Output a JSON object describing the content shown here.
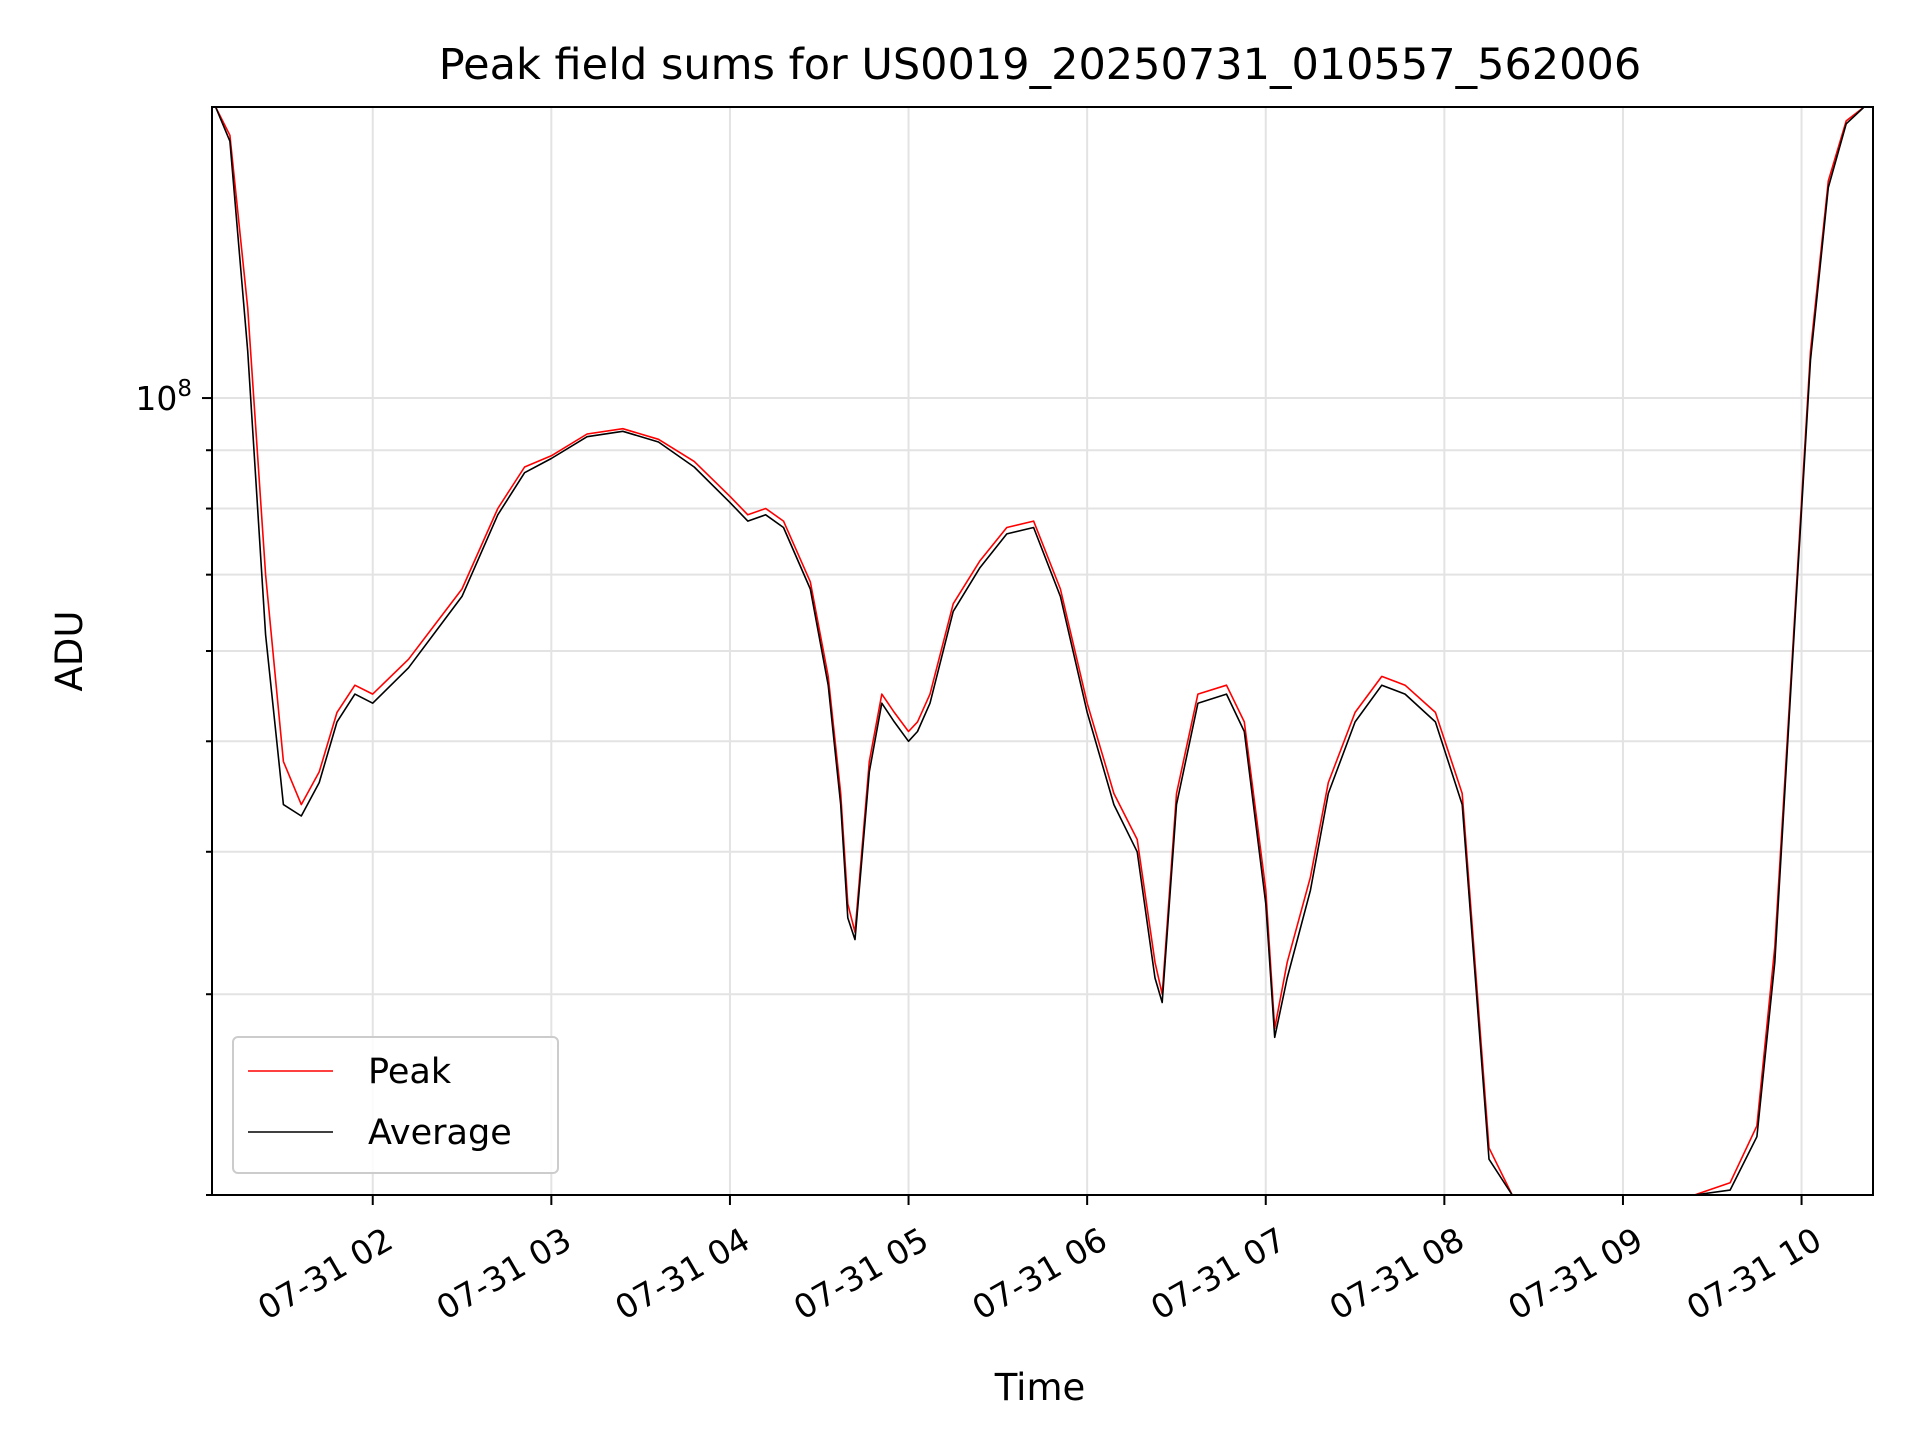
{
  "chart_data": {
    "type": "line",
    "title": "Peak field sums for US0019_20250731_010557_562006",
    "xlabel": "Time",
    "ylabel": "ADU",
    "y_scale": "log",
    "grid": true,
    "legend_position": "lower-left",
    "x_tick_labels": [
      "07-31 02",
      "07-31 03",
      "07-31 04",
      "07-31 05",
      "07-31 06",
      "07-31 07",
      "07-31 08",
      "07-31 09",
      "07-31 10"
    ],
    "x_tick_hours": [
      2,
      3,
      4,
      5,
      6,
      7,
      8,
      9,
      10
    ],
    "xlim_hours": [
      1.1,
      10.4
    ],
    "y_major_tick": {
      "base": 10,
      "exponent": 8
    },
    "ylim": [
      20000000,
      180000000
    ],
    "series": [
      {
        "name": "Peak",
        "color": "#ff0000",
        "x_hours": [
          1.12,
          1.2,
          1.3,
          1.4,
          1.5,
          1.6,
          1.7,
          1.8,
          1.9,
          2.0,
          2.2,
          2.5,
          2.7,
          2.85,
          3.0,
          3.2,
          3.4,
          3.6,
          3.8,
          4.0,
          4.1,
          4.2,
          4.3,
          4.45,
          4.55,
          4.62,
          4.66,
          4.7,
          4.78,
          4.85,
          4.92,
          5.0,
          5.05,
          5.12,
          5.25,
          5.4,
          5.55,
          5.7,
          5.85,
          6.0,
          6.15,
          6.28,
          6.38,
          6.42,
          6.5,
          6.62,
          6.78,
          6.88,
          7.0,
          7.05,
          7.12,
          7.25,
          7.35,
          7.5,
          7.65,
          7.78,
          7.95,
          8.1,
          8.25,
          8.38,
          8.6,
          8.8,
          9.0,
          9.2,
          9.4,
          9.6,
          9.75,
          9.85,
          9.95,
          10.05,
          10.15,
          10.25,
          10.35,
          10.4
        ],
        "y": [
          180000000,
          170000000,
          120000000,
          70000000,
          48000000,
          44000000,
          47000000,
          53000000,
          56000000,
          55000000,
          59000000,
          68000000,
          80000000,
          87000000,
          89000000,
          93000000,
          94000000,
          92000000,
          88000000,
          82000000,
          79000000,
          80000000,
          78000000,
          69000000,
          57000000,
          45000000,
          36000000,
          34000000,
          48000000,
          55000000,
          53000000,
          51000000,
          52000000,
          55000000,
          66000000,
          72000000,
          77000000,
          78000000,
          68000000,
          54000000,
          45000000,
          41000000,
          32000000,
          30000000,
          45000000,
          55000000,
          56000000,
          52000000,
          37000000,
          28000000,
          32000000,
          38000000,
          46000000,
          53000000,
          57000000,
          56000000,
          53000000,
          45000000,
          22000000,
          19400000,
          19500000,
          19500000,
          19700000,
          19700000,
          19800000,
          20500000,
          23000000,
          33000000,
          60000000,
          110000000,
          155000000,
          175000000,
          180000000,
          180000000
        ]
      },
      {
        "name": "Average",
        "color": "#000000",
        "x_hours": [
          1.12,
          1.2,
          1.3,
          1.4,
          1.5,
          1.6,
          1.7,
          1.8,
          1.9,
          2.0,
          2.2,
          2.5,
          2.7,
          2.85,
          3.0,
          3.2,
          3.4,
          3.6,
          3.8,
          4.0,
          4.1,
          4.2,
          4.3,
          4.45,
          4.55,
          4.62,
          4.66,
          4.7,
          4.78,
          4.85,
          4.92,
          5.0,
          5.05,
          5.12,
          5.25,
          5.4,
          5.55,
          5.7,
          5.85,
          6.0,
          6.15,
          6.28,
          6.38,
          6.42,
          6.5,
          6.62,
          6.78,
          6.88,
          7.0,
          7.05,
          7.12,
          7.25,
          7.35,
          7.5,
          7.65,
          7.78,
          7.95,
          8.1,
          8.25,
          8.38,
          8.6,
          8.8,
          9.0,
          9.2,
          9.4,
          9.6,
          9.75,
          9.85,
          9.95,
          10.05,
          10.15,
          10.25,
          10.35,
          10.4
        ],
        "y": [
          180000000,
          168000000,
          110000000,
          62000000,
          44000000,
          43000000,
          46000000,
          52000000,
          55000000,
          54000000,
          58000000,
          67000000,
          79000000,
          86000000,
          88500000,
          92500000,
          93500000,
          91500000,
          87000000,
          81000000,
          78000000,
          79000000,
          77000000,
          68000000,
          56000000,
          44000000,
          35000000,
          33500000,
          47000000,
          54000000,
          52000000,
          50000000,
          51000000,
          54000000,
          65000000,
          71000000,
          76000000,
          77000000,
          67000000,
          53000000,
          44000000,
          40000000,
          31000000,
          29500000,
          44000000,
          54000000,
          55000000,
          51000000,
          36000000,
          27500000,
          31000000,
          37000000,
          45000000,
          52000000,
          56000000,
          55000000,
          52000000,
          44000000,
          21500000,
          19200000,
          19300000,
          19400000,
          19500000,
          19500000,
          19600000,
          20200000,
          22500000,
          32000000,
          59000000,
          108000000,
          153000000,
          174000000,
          180000000,
          180000000
        ]
      }
    ]
  }
}
